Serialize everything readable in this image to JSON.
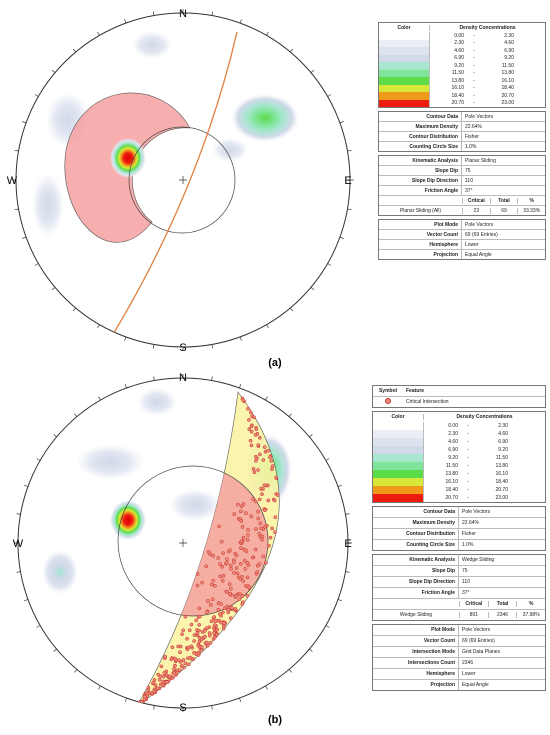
{
  "panels": [
    {
      "label": "(a)",
      "compass": {
        "n": "N",
        "e": "E",
        "s": "S",
        "w": "W"
      },
      "legend": {
        "color_header": "Color",
        "density_header": "Density Concentrations",
        "separator": "-",
        "bins": [
          {
            "low": "0.00",
            "high": "2.30",
            "color": "#ffffff"
          },
          {
            "low": "2.30",
            "high": "4.60",
            "color": "#eceef5"
          },
          {
            "low": "4.60",
            "high": "6.90",
            "color": "#dde3ee"
          },
          {
            "low": "6.90",
            "high": "9.20",
            "color": "#cfd9e8"
          },
          {
            "low": "9.20",
            "high": "11.50",
            "color": "#a7e6cf"
          },
          {
            "low": "11.50",
            "high": "13.80",
            "color": "#7fe59a"
          },
          {
            "low": "13.80",
            "high": "16.10",
            "color": "#5ddc4a"
          },
          {
            "low": "16.10",
            "high": "18.40",
            "color": "#d8e838"
          },
          {
            "low": "18.40",
            "high": "20.70",
            "color": "#f09a1c"
          },
          {
            "low": "20.70",
            "high": "23.00",
            "color": "#ee1c10"
          }
        ]
      },
      "groups": [
        {
          "rows": [
            {
              "label": "Contour Data",
              "value": "Pole Vectors"
            },
            {
              "label": "Maximum Density",
              "value": "22.64%"
            },
            {
              "label": "Contour Distribution",
              "value": "Fisher"
            },
            {
              "label": "Counting Circle Size",
              "value": "1.0%"
            }
          ]
        },
        {
          "rows": [
            {
              "label": "Kinematic Analysis",
              "value": "Planar Sliding"
            },
            {
              "label": "Slope Dip",
              "value": "75"
            },
            {
              "label": "Slope Dip Direction",
              "value": "110"
            },
            {
              "label": "Friction Angle",
              "value": "37°"
            }
          ],
          "result": {
            "headers": [
              "Critical",
              "Total",
              "%"
            ],
            "name": "Planar Sliding (All)",
            "critical": "23",
            "total": "69",
            "percent": "33.33%"
          }
        },
        {
          "rows": [
            {
              "label": "Plot Mode",
              "value": "Pole Vectors"
            },
            {
              "label": "Vector Count",
              "value": "69 (69 Entries)"
            },
            {
              "label": "Hemisphere",
              "value": "Lower"
            },
            {
              "label": "Projection",
              "value": "Equal Angle"
            }
          ]
        }
      ]
    },
    {
      "label": "(b)",
      "compass": {
        "n": "N",
        "e": "E",
        "s": "S",
        "w": "W"
      },
      "symbol": {
        "symbol_header": "Symbol",
        "feature_header": "Feature",
        "feature": "Critical Intersection"
      },
      "legend": {
        "color_header": "Color",
        "density_header": "Density Concentrations",
        "separator": "-",
        "bins": [
          {
            "low": "0.00",
            "high": "2.30",
            "color": "#ffffff"
          },
          {
            "low": "2.30",
            "high": "4.60",
            "color": "#eceef5"
          },
          {
            "low": "4.60",
            "high": "6.90",
            "color": "#dde3ee"
          },
          {
            "low": "6.90",
            "high": "9.20",
            "color": "#cfd9e8"
          },
          {
            "low": "9.20",
            "high": "11.50",
            "color": "#a7e6cf"
          },
          {
            "low": "11.50",
            "high": "13.80",
            "color": "#7fe59a"
          },
          {
            "low": "13.80",
            "high": "16.10",
            "color": "#5ddc4a"
          },
          {
            "low": "16.10",
            "high": "18.40",
            "color": "#d8e838"
          },
          {
            "low": "18.40",
            "high": "20.70",
            "color": "#f09a1c"
          },
          {
            "low": "20.70",
            "high": "23.00",
            "color": "#ee1c10"
          }
        ]
      },
      "groups": [
        {
          "rows": [
            {
              "label": "Contour Data",
              "value": "Pole Vectors"
            },
            {
              "label": "Maximum Density",
              "value": "22.64%"
            },
            {
              "label": "Contour Distribution",
              "value": "Fisher"
            },
            {
              "label": "Counting Circle Size",
              "value": "1.0%"
            }
          ]
        },
        {
          "rows": [
            {
              "label": "Kinematic Analysis",
              "value": "Wedge Sliding"
            },
            {
              "label": "Slope Dip",
              "value": "75"
            },
            {
              "label": "Slope Dip Direction",
              "value": "110"
            },
            {
              "label": "Friction Angle",
              "value": "37°"
            }
          ],
          "result": {
            "headers": [
              "Critical",
              "Total",
              "%"
            ],
            "name": "Wedge Sliding",
            "critical": "891",
            "total": "2346",
            "percent": "37.98%"
          }
        },
        {
          "rows": [
            {
              "label": "Plot Mode",
              "value": "Pole Vectors"
            },
            {
              "label": "Vector Count",
              "value": "69 (69 Entries)"
            },
            {
              "label": "Intersection Mode",
              "value": "Grid Data Planes"
            },
            {
              "label": "Intersections Count",
              "value": "2346"
            },
            {
              "label": "Hemisphere",
              "value": "Lower"
            },
            {
              "label": "Projection",
              "value": "Equal Angle"
            }
          ]
        }
      ]
    }
  ]
}
